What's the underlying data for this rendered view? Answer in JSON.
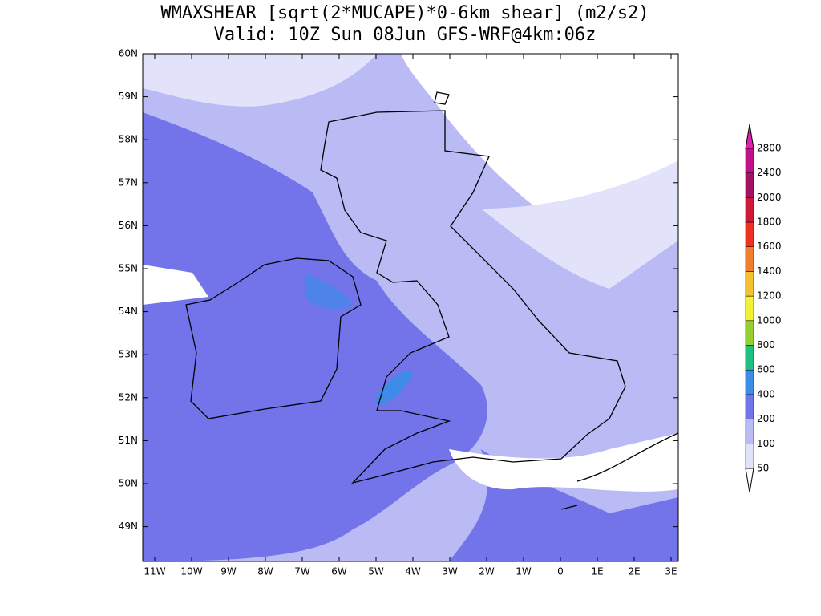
{
  "title": [
    "WMAXSHEAR [sqrt(2*MUCAPE)*0-6km shear] (m2/s2)",
    "Valid: 10Z Sun 08Jun GFS-WRF@4km:06z"
  ],
  "lat_ticks": [
    "60N",
    "59N",
    "58N",
    "57N",
    "56N",
    "55N",
    "54N",
    "53N",
    "52N",
    "51N",
    "50N",
    "49N"
  ],
  "lon_ticks": [
    "11W",
    "10W",
    "9W",
    "8W",
    "7W",
    "6W",
    "5W",
    "4W",
    "3W",
    "2W",
    "1W",
    "0",
    "1E",
    "2E",
    "3E"
  ],
  "colorbar": {
    "levels": [
      50,
      100,
      200,
      400,
      600,
      800,
      1000,
      1200,
      1400,
      1600,
      1800,
      2000,
      2400,
      2800
    ],
    "colors": [
      "#ffffff",
      "#e2e2fb",
      "#babaf5",
      "#7373ea",
      "#3f8ce8",
      "#20c080",
      "#94d030",
      "#f2f230",
      "#f2c030",
      "#f08030",
      "#f03020",
      "#d01838",
      "#a41062",
      "#c0108c",
      "#e020b0"
    ]
  }
}
